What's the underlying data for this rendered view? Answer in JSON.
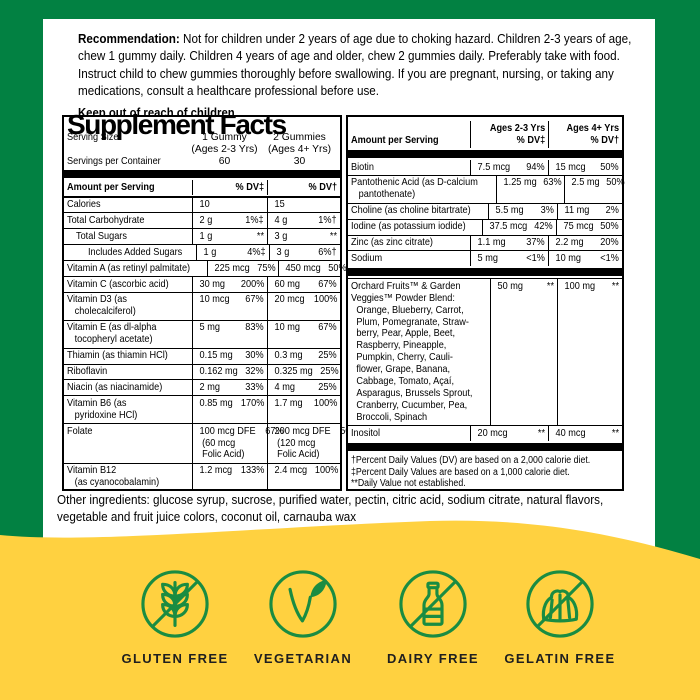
{
  "colors": {
    "border_green": "#028142",
    "banner_yellow": "#FFD140",
    "icon_green": "#1A8C42",
    "badge_text": "#1F1F1F"
  },
  "recommendation": {
    "lead": "Recommendation:",
    "body": " Not for children under 2 years of age due to choking hazard. Children 2-3 years of age, chew 1 gummy daily. Children 4 years of age and older, chew 2 gummies daily. Preferably take with food. Instruct child to chew gummies thoroughly before swallowing. If you are pregnant, nursing, or taking any medications, consult a healthcare professional before use.",
    "keep_out": "Keep out of reach of children."
  },
  "facts": {
    "title": "Supplement Facts",
    "left": {
      "serving_size_label": "Serving Size",
      "serving_col1": "1 Gummy\n(Ages 2-3 Yrs)",
      "serving_col2": "2 Gummies\n(Ages 4+ Yrs)",
      "servings_label": "Servings per Container",
      "servings_col1": "60",
      "servings_col2": "30",
      "header": {
        "label": "Amount per Serving",
        "col1": "% DV‡",
        "col2": "% DV†"
      },
      "rows": [
        {
          "label": "Calories",
          "a_amt": "10",
          "a_pct": "",
          "b_amt": "15",
          "b_pct": ""
        },
        {
          "label": "Total Carbohydrate",
          "a_amt": "2 g",
          "a_pct": "1%‡",
          "b_amt": "4 g",
          "b_pct": "1%†"
        },
        {
          "label": "Total Sugars",
          "indent": 1,
          "a_amt": "1 g",
          "a_pct": "**",
          "b_amt": "3 g",
          "b_pct": "**"
        },
        {
          "label": "Includes Added Sugars",
          "indent": 2,
          "a_amt": "1 g",
          "a_pct": "4%‡",
          "b_amt": "3 g",
          "b_pct": "6%†"
        },
        {
          "label": "Vitamin A (as retinyl palmitate)",
          "a_amt": "225 mcg",
          "a_pct": "75%",
          "b_amt": "450 mcg",
          "b_pct": "50%"
        },
        {
          "label": "Vitamin C (ascorbic acid)",
          "a_amt": "30 mg",
          "a_pct": "200%",
          "b_amt": "60 mg",
          "b_pct": "67%"
        },
        {
          "label": "Vitamin D3 (as\n   cholecalciferol)",
          "a_amt": "10 mcg",
          "a_pct": "67%",
          "b_amt": "20 mcg",
          "b_pct": "100%"
        },
        {
          "label": "Vitamin E (as dl-alpha\n   tocopheryl acetate)",
          "a_amt": "5 mg",
          "a_pct": "83%",
          "b_amt": "10 mg",
          "b_pct": "67%"
        },
        {
          "label": "Thiamin (as thiamin HCl)",
          "a_amt": "0.15 mg",
          "a_pct": "30%",
          "b_amt": "0.3 mg",
          "b_pct": "25%"
        },
        {
          "label": "Riboflavin",
          "a_amt": "0.162 mg",
          "a_pct": "32%",
          "b_amt": "0.325 mg",
          "b_pct": "25%"
        },
        {
          "label": "Niacin (as niacinamide)",
          "a_amt": "2 mg",
          "a_pct": "33%",
          "b_amt": "4 mg",
          "b_pct": "25%"
        },
        {
          "label": "Vitamin B6 (as\n   pyridoxine HCl)",
          "a_amt": "0.85 mg",
          "a_pct": "170%",
          "b_amt": "1.7 mg",
          "b_pct": "100%"
        },
        {
          "label": "Folate",
          "a_amt": "100 mcg DFE\n (60 mcg\n Folic Acid)",
          "a_pct": "67%",
          "b_amt": "200 mcg DFE\n (120 mcg\n Folic Acid)",
          "b_pct": "50%"
        },
        {
          "label": "Vitamin B12\n   (as cyanocobalamin)",
          "a_amt": "1.2 mcg",
          "a_pct": "133%",
          "b_amt": "2.4 mcg",
          "b_pct": "100%"
        }
      ]
    },
    "right": {
      "header": {
        "label": "Amount per Serving",
        "col1": "Ages 2-3 Yrs\n% DV‡",
        "col2": "Ages 4+ Yrs\n% DV†"
      },
      "rows": [
        {
          "label": "Biotin",
          "a_amt": "7.5 mcg",
          "a_pct": "94%",
          "b_amt": "15 mcg",
          "b_pct": "50%"
        },
        {
          "label": "Pantothenic Acid (as D-calcium\n   pantothenate)",
          "a_amt": "1.25 mg",
          "a_pct": "63%",
          "b_amt": "2.5 mg",
          "b_pct": "50%"
        },
        {
          "label": "Choline (as choline bitartrate)",
          "a_amt": "5.5 mg",
          "a_pct": "3%",
          "b_amt": "11 mg",
          "b_pct": "2%"
        },
        {
          "label": "Iodine (as potassium iodide)",
          "a_amt": "37.5 mcg",
          "a_pct": "42%",
          "b_amt": "75 mcg",
          "b_pct": "50%"
        },
        {
          "label": "Zinc (as zinc citrate)",
          "a_amt": "1.1 mg",
          "a_pct": "37%",
          "b_amt": "2.2 mg",
          "b_pct": "20%"
        },
        {
          "label": "Sodium",
          "a_amt": "5 mg",
          "a_pct": "<1%",
          "b_amt": "10 mg",
          "b_pct": "<1%"
        },
        {
          "bar": true
        },
        {
          "label": "Orchard Fruits™ & Garden\nVeggies™ Powder Blend:",
          "sub": "Orange, Blueberry, Carrot,\nPlum, Pomegranate, Straw-\nberry, Pear, Apple, Beet,\nRaspberry, Pineapple,\nPumpkin, Cherry, Cauli-\nflower, Grape, Banana,\nCabbage, Tomato, Açaí,\nAsparagus, Brussels Sprout,\nCranberry, Cucumber, Pea,\nBroccoli, Spinach",
          "a_amt": "50 mg",
          "a_pct": "**",
          "b_amt": "100 mg",
          "b_pct": "**"
        },
        {
          "label": "Inositol",
          "a_amt": "20 mcg",
          "a_pct": "**",
          "b_amt": "40 mcg",
          "b_pct": "**"
        },
        {
          "bar": true
        }
      ],
      "footnotes": [
        "†Percent Daily Values (DV) are based on a 2,000 calorie diet.",
        "‡Percent Daily Values are based on a 1,000 calorie diet.",
        "**Daily Value not established."
      ]
    }
  },
  "other_ingredients": "Other ingredients: glucose syrup, sucrose, purified water, pectin, citric acid, sodium citrate, natural flavors, vegetable and fruit juice colors, coconut oil, carnauba wax",
  "badges": [
    {
      "label": "GLUTEN FREE",
      "icon": "gluten-free-icon"
    },
    {
      "label": "VEGETARIAN",
      "icon": "vegetarian-icon"
    },
    {
      "label": "DAIRY FREE",
      "icon": "dairy-free-icon"
    },
    {
      "label": "GELATIN FREE",
      "icon": "gelatin-free-icon"
    }
  ]
}
